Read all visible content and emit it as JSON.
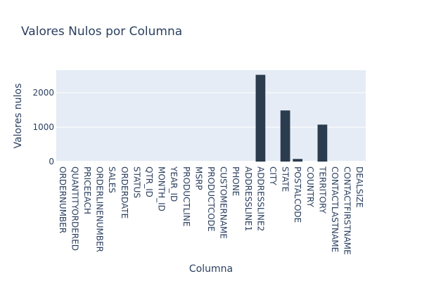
{
  "chart_data": {
    "type": "bar",
    "title": "Valores Nulos por Columna",
    "xlabel": "Columna",
    "ylabel": "Valores nulos",
    "categories": [
      "ORDERNUMBER",
      "QUANTITYORDERED",
      "PRICEEACH",
      "ORDERLINENUMBER",
      "SALES",
      "ORDERDATE",
      "STATUS",
      "QTR_ID",
      "MONTH_ID",
      "YEAR_ID",
      "PRODUCTLINE",
      "MSRP",
      "PRODUCTCODE",
      "CUSTOMERNAME",
      "PHONE",
      "ADDRESSLINE1",
      "ADDRESSLINE2",
      "CITY",
      "STATE",
      "POSTALCODE",
      "COUNTRY",
      "TERRITORY",
      "CONTACTLASTNAME",
      "CONTACTFIRSTNAME",
      "DEALSIZE"
    ],
    "values": [
      0,
      0,
      0,
      0,
      0,
      0,
      0,
      0,
      0,
      0,
      0,
      0,
      0,
      0,
      0,
      0,
      2521,
      0,
      1486,
      76,
      0,
      1074,
      0,
      0,
      0
    ],
    "ylim": [
      0,
      2654
    ],
    "yticks": [
      0,
      1000,
      2000
    ],
    "ytick_labels": [
      "0",
      "1000",
      "2000"
    ],
    "grid": true,
    "colors": {
      "bar": "#2b3c4e",
      "plot_bg": "#e5ecf6",
      "grid": "#ffffff",
      "text": "#2a3f5f"
    }
  }
}
